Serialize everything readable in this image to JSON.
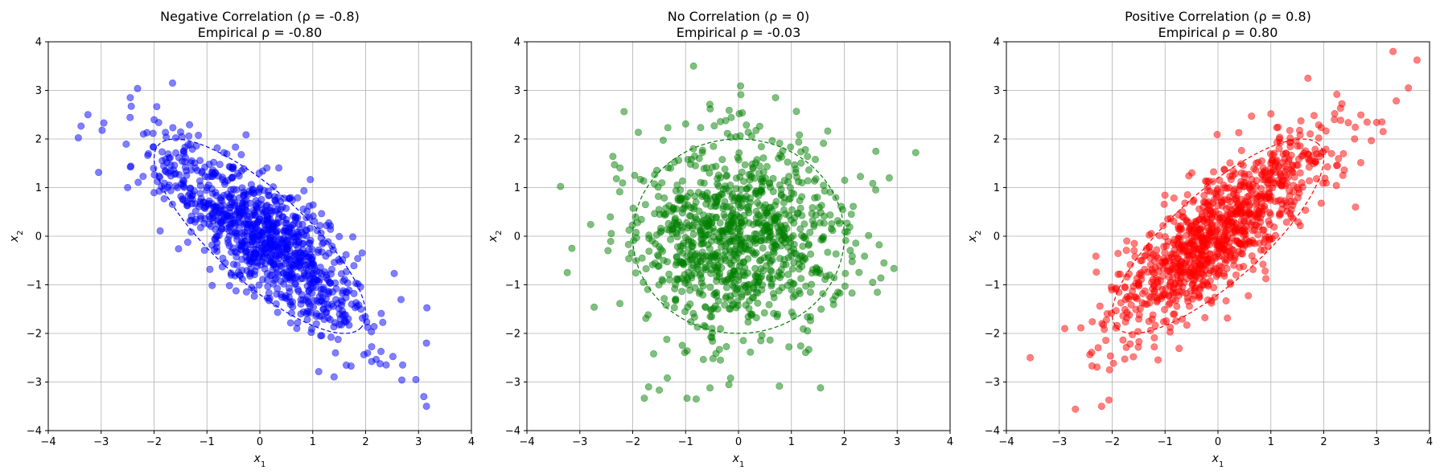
{
  "chart_data": [
    {
      "type": "scatter",
      "title_line1": "Negative Correlation (ρ = -0.8)",
      "title_line2": "Empirical ρ = -0.80",
      "xlabel": "x1",
      "ylabel": "x2",
      "xlim": [
        -4,
        4
      ],
      "ylim": [
        -4,
        4
      ],
      "xticks": [
        -4,
        -3,
        -2,
        -1,
        0,
        1,
        2,
        3,
        4
      ],
      "yticks": [
        -4,
        -3,
        -2,
        -1,
        0,
        1,
        2,
        3,
        4
      ],
      "xtick_labels": [
        "−4",
        "−3",
        "−2",
        "−1",
        "0",
        "1",
        "2",
        "3",
        "4"
      ],
      "ytick_labels": [
        "−4",
        "−3",
        "−2",
        "−1",
        "0",
        "1",
        "2",
        "3",
        "4"
      ],
      "grid": true,
      "color": "#0000ff",
      "rho": -0.8,
      "n_points": 1000,
      "seed": 17,
      "contour": "dashed ellipse, 2 standard deviations",
      "sample_points": [
        [
          -3.25,
          2.5
        ],
        [
          -2.95,
          2.33
        ],
        [
          -2.45,
          2.85
        ],
        [
          -1.65,
          3.15
        ],
        [
          -2.5,
          1.0
        ],
        [
          -2.2,
          2.1
        ],
        [
          3.15,
          -3.5
        ],
        [
          3.1,
          -3.3
        ],
        [
          2.95,
          -2.95
        ],
        [
          3.15,
          -2.2
        ],
        [
          2.7,
          -2.65
        ],
        [
          -0.15,
          -0.1
        ],
        [
          0.5,
          -0.5
        ],
        [
          -1.0,
          1.0
        ],
        [
          1.2,
          -1.1
        ]
      ]
    },
    {
      "type": "scatter",
      "title_line1": "No Correlation (ρ = 0)",
      "title_line2": "Empirical ρ = -0.03",
      "xlabel": "x1",
      "ylabel": "x2",
      "xlim": [
        -4,
        4
      ],
      "ylim": [
        -4,
        4
      ],
      "xticks": [
        -4,
        -3,
        -2,
        -1,
        0,
        1,
        2,
        3,
        4
      ],
      "yticks": [
        -4,
        -3,
        -2,
        -1,
        0,
        1,
        2,
        3,
        4
      ],
      "xtick_labels": [
        "−4",
        "−3",
        "−2",
        "−1",
        "0",
        "1",
        "2",
        "3",
        "4"
      ],
      "ytick_labels": [
        "−4",
        "−3",
        "−2",
        "−1",
        "0",
        "1",
        "2",
        "3",
        "4"
      ],
      "grid": true,
      "color": "#008000",
      "rho": 0.0,
      "n_points": 1000,
      "seed": 29,
      "contour": "dashed ellipse, 2 standard deviations",
      "sample_points": [
        [
          -0.85,
          3.5
        ],
        [
          0.7,
          2.85
        ],
        [
          3.35,
          1.72
        ],
        [
          -3.15,
          -0.25
        ],
        [
          -0.8,
          -3.35
        ],
        [
          -1.7,
          -3.1
        ],
        [
          1.55,
          -3.12
        ],
        [
          -0.15,
          -2.92
        ],
        [
          2.75,
          -0.55
        ],
        [
          2.85,
          1.2
        ],
        [
          0.0,
          0.0
        ],
        [
          -0.5,
          0.4
        ],
        [
          0.6,
          -0.7
        ],
        [
          1.2,
          1.1
        ],
        [
          -1.3,
          -0.9
        ]
      ]
    },
    {
      "type": "scatter",
      "title_line1": "Positive Correlation (ρ = 0.8)",
      "title_line2": "Empirical ρ = 0.80",
      "xlabel": "x1",
      "ylabel": "x2",
      "xlim": [
        -4,
        4
      ],
      "ylim": [
        -4,
        4
      ],
      "xticks": [
        -4,
        -3,
        -2,
        -1,
        0,
        1,
        2,
        3,
        4
      ],
      "yticks": [
        -4,
        -3,
        -2,
        -1,
        0,
        1,
        2,
        3,
        4
      ],
      "xtick_labels": [
        "−4",
        "−3",
        "−2",
        "−1",
        "0",
        "1",
        "2",
        "3",
        "4"
      ],
      "ytick_labels": [
        "−4",
        "−3",
        "−2",
        "−1",
        "0",
        "1",
        "2",
        "3",
        "4"
      ],
      "grid": true,
      "color": "#ff0000",
      "rho": 0.8,
      "n_points": 1000,
      "seed": 43,
      "contour": "dashed ellipse, 2 standard deviations",
      "sample_points": [
        [
          -3.55,
          -2.5
        ],
        [
          -2.2,
          -3.5
        ],
        [
          -2.05,
          -2.75
        ],
        [
          1.7,
          3.25
        ],
        [
          3.6,
          3.05
        ],
        [
          3.1,
          2.35
        ],
        [
          2.6,
          0.6
        ],
        [
          1.0,
          1.5
        ],
        [
          -1.0,
          -1.2
        ],
        [
          0.0,
          0.1
        ],
        [
          0.5,
          0.3
        ],
        [
          -0.5,
          -0.4
        ],
        [
          1.5,
          1.0
        ],
        [
          -1.5,
          -1.0
        ],
        [
          2.2,
          2.4
        ]
      ]
    }
  ]
}
